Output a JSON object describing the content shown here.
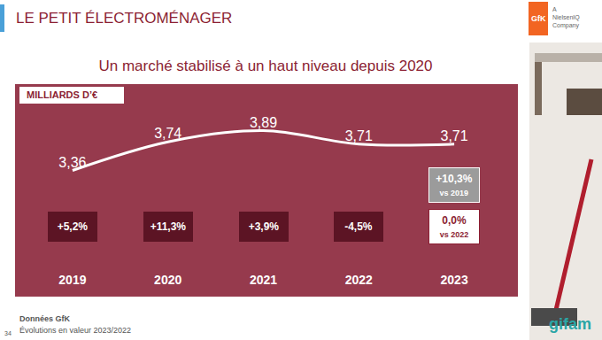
{
  "slide": {
    "header": "LE PETIT ÉLECTROMÉNAGER",
    "page": "34",
    "source": "Données GfK",
    "note": "Évolutions en valeur 2023/2022",
    "logos": {
      "gfk": "GfK",
      "gfk_tagline": [
        "A",
        "NielsenIQ",
        "Company"
      ],
      "gifam": "gifam"
    }
  },
  "chart_data": {
    "type": "line",
    "title": "Un marché stabilisé à un haut niveau depuis 2020",
    "y_label": "MILLIARDS D’€",
    "categories": [
      "2019",
      "2020",
      "2021",
      "2022",
      "2023"
    ],
    "values": [
      3.36,
      3.74,
      3.89,
      3.71,
      3.71
    ],
    "value_labels": [
      "3,36",
      "3,74",
      "3,89",
      "3,71",
      "3,71"
    ],
    "data_labels": true,
    "color": "#ffffff",
    "tick_labels": "x",
    "grid": false,
    "annotations": [
      {
        "x": "2019",
        "text": "+5,2%",
        "color": "#5c1424"
      },
      {
        "x": "2020",
        "text": "+11,3%",
        "color": "#5c1424"
      },
      {
        "x": "2021",
        "text": "+3,9%",
        "color": "#5c1424"
      },
      {
        "x": "2022",
        "text": "-4,5%",
        "color": "#5c1424"
      },
      {
        "x": "2023",
        "text": "0,0%",
        "note": "vs 2022",
        "color": "#ffffff"
      },
      {
        "x": "2023",
        "text": "+10,3%",
        "note": "vs 2019",
        "color": "#9b9b9b"
      }
    ]
  }
}
